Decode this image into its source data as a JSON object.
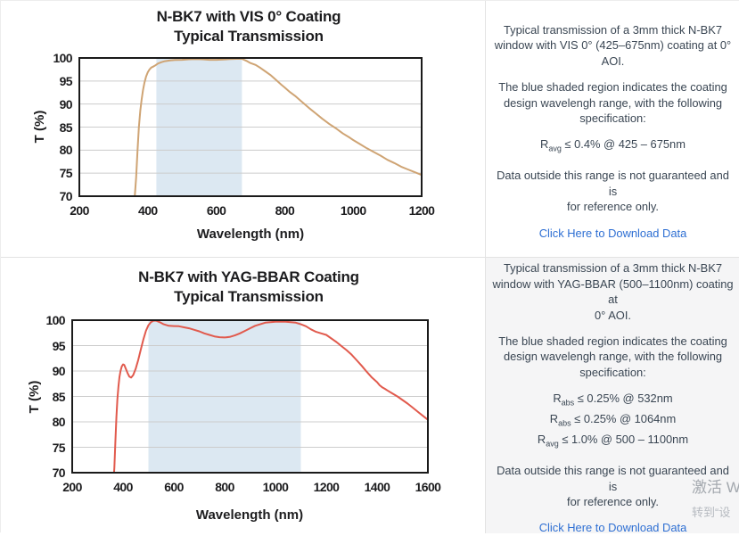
{
  "chart_data": [
    {
      "type": "line",
      "name": "vis-0-coating-transmission-chart",
      "title_lines": [
        "N-BK7 with VIS 0° Coating",
        "Typical Transmission"
      ],
      "title": "N-BK7 with VIS 0° Coating Typical Transmission",
      "xlabel": "Wavelength (nm)",
      "ylabel": "T (%)",
      "xlim": [
        200,
        1200
      ],
      "ylim": [
        70,
        100
      ],
      "xticks": [
        200,
        400,
        600,
        800,
        1000,
        1200
      ],
      "yticks": [
        70,
        75,
        80,
        85,
        90,
        95,
        100
      ],
      "grid": "horizontal",
      "band": {
        "x0": 425,
        "x1": 675,
        "color": "#dce8f2",
        "meaning": "coating design wavelength range 425-675nm"
      },
      "line_color": "#cfa474",
      "series": [
        {
          "name": "Transmission",
          "points": [
            [
              358,
              68
            ],
            [
              362,
              70
            ],
            [
              366,
              74
            ],
            [
              370,
              80
            ],
            [
              374,
              85
            ],
            [
              378,
              88.6
            ],
            [
              382,
              91
            ],
            [
              386,
              93
            ],
            [
              390,
              94.6
            ],
            [
              395,
              96
            ],
            [
              400,
              96.9
            ],
            [
              405,
              97.5
            ],
            [
              410,
              97.9
            ],
            [
              415,
              98.1
            ],
            [
              420,
              98.3
            ],
            [
              430,
              98.8
            ],
            [
              440,
              99.1
            ],
            [
              450,
              99.3
            ],
            [
              465,
              99.45
            ],
            [
              480,
              99.55
            ],
            [
              500,
              99.6
            ],
            [
              520,
              99.7
            ],
            [
              540,
              99.75
            ],
            [
              560,
              99.7
            ],
            [
              580,
              99.6
            ],
            [
              600,
              99.6
            ],
            [
              620,
              99.65
            ],
            [
              640,
              99.75
            ],
            [
              660,
              99.8
            ],
            [
              675,
              99.8
            ],
            [
              690,
              99.3
            ],
            [
              700,
              98.9
            ],
            [
              715,
              98.5
            ],
            [
              730,
              97.8
            ],
            [
              745,
              97.0
            ],
            [
              760,
              96.2
            ],
            [
              775,
              95.2
            ],
            [
              790,
              94.2
            ],
            [
              800,
              93.6
            ],
            [
              815,
              92.6
            ],
            [
              830,
              91.8
            ],
            [
              850,
              90.5
            ],
            [
              870,
              89.2
            ],
            [
              890,
              88.0
            ],
            [
              910,
              86.8
            ],
            [
              930,
              85.7
            ],
            [
              950,
              84.7
            ],
            [
              970,
              83.6
            ],
            [
              990,
              82.7
            ],
            [
              1000,
              82.2
            ],
            [
              1020,
              81.3
            ],
            [
              1040,
              80.4
            ],
            [
              1060,
              79.6
            ],
            [
              1080,
              78.8
            ],
            [
              1100,
              77.9
            ],
            [
              1120,
              77.2
            ],
            [
              1140,
              76.4
            ],
            [
              1160,
              75.8
            ],
            [
              1180,
              75.2
            ],
            [
              1200,
              74.6
            ]
          ]
        }
      ]
    },
    {
      "type": "line",
      "name": "yag-bbar-coating-transmission-chart",
      "title_lines": [
        "N-BK7 with YAG-BBAR Coating",
        "Typical Transmission"
      ],
      "title": "N-BK7 with YAG-BBAR Coating Typical Transmission",
      "xlabel": "Wavelength (nm)",
      "ylabel": "T (%)",
      "xlim": [
        200,
        1600
      ],
      "ylim": [
        70,
        100
      ],
      "xticks": [
        200,
        400,
        600,
        800,
        1000,
        1200,
        1400,
        1600
      ],
      "yticks": [
        70,
        75,
        80,
        85,
        90,
        95,
        100
      ],
      "grid": "horizontal",
      "band": {
        "x0": 500,
        "x1": 1100,
        "color": "#dce8f2",
        "meaning": "coating design wavelength range 500-1100nm"
      },
      "line_color": "#e15a4d",
      "series": [
        {
          "name": "Transmission",
          "points": [
            [
              362,
              68
            ],
            [
              366,
              71
            ],
            [
              370,
              76
            ],
            [
              374,
              81
            ],
            [
              378,
              84.5
            ],
            [
              382,
              87
            ],
            [
              386,
              88.8
            ],
            [
              390,
              90
            ],
            [
              395,
              90.9
            ],
            [
              400,
              91.3
            ],
            [
              405,
              91.2
            ],
            [
              410,
              90.6
            ],
            [
              418,
              89.6
            ],
            [
              425,
              88.9
            ],
            [
              432,
              88.7
            ],
            [
              440,
              89.2
            ],
            [
              450,
              90.5
            ],
            [
              460,
              92.2
            ],
            [
              470,
              94.2
            ],
            [
              480,
              96.2
            ],
            [
              490,
              97.9
            ],
            [
              500,
              99.0
            ],
            [
              510,
              99.6
            ],
            [
              520,
              99.9
            ],
            [
              530,
              99.9
            ],
            [
              545,
              99.6
            ],
            [
              560,
              99.2
            ],
            [
              580,
              98.9
            ],
            [
              600,
              98.85
            ],
            [
              620,
              98.8
            ],
            [
              640,
              98.6
            ],
            [
              660,
              98.4
            ],
            [
              680,
              98.1
            ],
            [
              700,
              97.8
            ],
            [
              720,
              97.4
            ],
            [
              740,
              97.1
            ],
            [
              760,
              96.8
            ],
            [
              780,
              96.65
            ],
            [
              800,
              96.6
            ],
            [
              820,
              96.7
            ],
            [
              840,
              97.0
            ],
            [
              860,
              97.4
            ],
            [
              880,
              97.9
            ],
            [
              900,
              98.4
            ],
            [
              920,
              98.9
            ],
            [
              940,
              99.2
            ],
            [
              960,
              99.5
            ],
            [
              980,
              99.6
            ],
            [
              1000,
              99.7
            ],
            [
              1020,
              99.7
            ],
            [
              1040,
              99.7
            ],
            [
              1060,
              99.6
            ],
            [
              1080,
              99.5
            ],
            [
              1100,
              99.2
            ],
            [
              1120,
              98.8
            ],
            [
              1140,
              98.2
            ],
            [
              1160,
              97.7
            ],
            [
              1180,
              97.4
            ],
            [
              1200,
              97.1
            ],
            [
              1220,
              96.4
            ],
            [
              1240,
              95.7
            ],
            [
              1260,
              94.9
            ],
            [
              1280,
              94.1
            ],
            [
              1300,
              93.2
            ],
            [
              1320,
              92.1
            ],
            [
              1340,
              91.0
            ],
            [
              1360,
              89.8
            ],
            [
              1380,
              88.7
            ],
            [
              1400,
              87.8
            ],
            [
              1410,
              87.2
            ],
            [
              1420,
              86.8
            ],
            [
              1430,
              86.5
            ],
            [
              1440,
              86.2
            ],
            [
              1460,
              85.6
            ],
            [
              1480,
              85.0
            ],
            [
              1500,
              84.3
            ],
            [
              1520,
              83.6
            ],
            [
              1540,
              82.8
            ],
            [
              1560,
              82.0
            ],
            [
              1580,
              81.2
            ],
            [
              1600,
              80.4
            ]
          ]
        }
      ]
    }
  ],
  "panels": [
    {
      "paragraphs": [
        [
          "Typical transmission of a 3mm thick N-BK7",
          "window with VIS 0° (425–675nm) coating at 0°",
          "AOI."
        ],
        [
          "The blue shaded region indicates the coating",
          "design wavelengh range, with the following",
          "specification:"
        ]
      ],
      "specs": [
        {
          "r": "R",
          "sub": "avg",
          "rest": " ≤ 0.4% @ 425 – 675nm"
        }
      ],
      "note": [
        "Data outside this range is not guaranteed and is",
        "for reference only."
      ],
      "link": "Click Here to Download Data"
    },
    {
      "paragraphs": [
        [
          "Typical transmission of a 3mm thick N-BK7",
          "window with YAG-BBAR (500–1100nm) coating at",
          "0° AOI."
        ],
        [
          "The blue shaded region indicates the coating",
          "design wavelengh range, with the following",
          "specification:"
        ]
      ],
      "specs": [
        {
          "r": "R",
          "sub": "abs",
          "rest": " ≤ 0.25% @ 532nm"
        },
        {
          "r": "R",
          "sub": "abs",
          "rest": " ≤ 0.25% @ 1064nm"
        },
        {
          "r": "R",
          "sub": "avg",
          "rest": " ≤ 1.0% @ 500 – 1100nm"
        }
      ],
      "note": [
        "Data outside this range is not guaranteed and is",
        "for reference only."
      ],
      "link": "Click Here to Download Data"
    }
  ],
  "watermark": {
    "line1": "激活 W",
    "line2": "转到“设"
  },
  "colors": {
    "vis_line": "#cfa474",
    "yag_line": "#e15a4d",
    "band": "#dce8f2",
    "gridline": "#cccccc",
    "plot_border": "#1a1a1a",
    "panel_text": "#3a4653",
    "link": "#2e6fd3",
    "panel2_bg": "#f5f5f6"
  }
}
